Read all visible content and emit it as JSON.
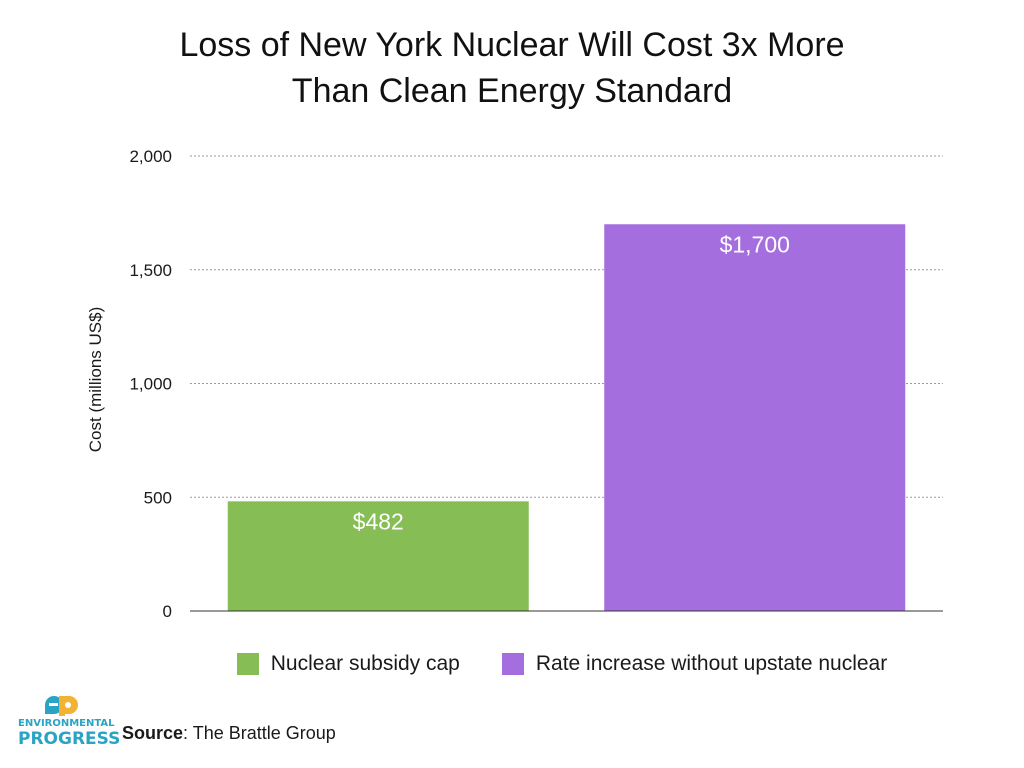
{
  "chart_data": {
    "type": "bar",
    "title": [
      "Loss of New York Nuclear Will Cost 3x More",
      "Than Clean Energy Standard"
    ],
    "ylabel": "Cost (millions US$)",
    "xlabel": "",
    "ylim": [
      0,
      2000
    ],
    "yticks": [
      0,
      500,
      1000,
      1500,
      2000
    ],
    "ytick_labels": [
      "0",
      "500",
      "1,000",
      "1,500",
      "2,000"
    ],
    "grid": true,
    "legend_position": "bottom",
    "series": [
      {
        "name": "Nuclear subsidy cap",
        "value": 482,
        "label": "$482",
        "color": "#86be55"
      },
      {
        "name": "Rate increase without upstate nuclear",
        "value": 1700,
        "label": "$1,700",
        "color": "#a56ede"
      }
    ]
  },
  "source": {
    "prefix": "Source",
    "text": ": The Brattle Group"
  },
  "logo": {
    "line1": "ENVIRONMENTAL",
    "line2": "PROGRESS",
    "colors": {
      "e": "#2aa4c4",
      "p": "#f2b233"
    }
  }
}
